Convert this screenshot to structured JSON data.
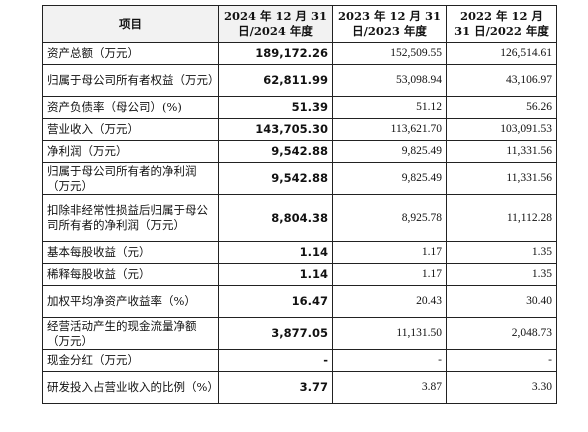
{
  "table": {
    "headers": [
      "项目",
      "2024 年 12 月 31 日/2024 年度",
      "2023 年 12 月 31 日/2023 年度",
      "2022 年 12 月 31 日/2022 年度"
    ],
    "rows": [
      {
        "label": "资产总额（万元）",
        "v2024": "189,172.26",
        "v2023": "152,509.55",
        "v2022": "126,514.61"
      },
      {
        "label": "归属于母公司所有者权益（万元）",
        "v2024": "62,811.99",
        "v2023": "53,098.94",
        "v2022": "43,106.97"
      },
      {
        "label": "资产负债率（母公司）(%)",
        "v2024": "51.39",
        "v2023": "51.12",
        "v2022": "56.26"
      },
      {
        "label": "营业收入（万元）",
        "v2024": "143,705.30",
        "v2023": "113,621.70",
        "v2022": "103,091.53"
      },
      {
        "label": "净利润（万元）",
        "v2024": "9,542.88",
        "v2023": "9,825.49",
        "v2022": "11,331.56"
      },
      {
        "label": "归属于母公司所有者的净利润（万元）",
        "v2024": "9,542.88",
        "v2023": "9,825.49",
        "v2022": "11,331.56"
      },
      {
        "label": "扣除非经常性损益后归属于母公司所有者的净利润（万元）",
        "v2024": "8,804.38",
        "v2023": "8,925.78",
        "v2022": "11,112.28"
      },
      {
        "label": "基本每股收益（元）",
        "v2024": "1.14",
        "v2023": "1.17",
        "v2022": "1.35"
      },
      {
        "label": "稀释每股收益（元）",
        "v2024": "1.14",
        "v2023": "1.17",
        "v2022": "1.35"
      },
      {
        "label": "加权平均净资产收益率（%）",
        "v2024": "16.47",
        "v2023": "20.43",
        "v2022": "30.40"
      },
      {
        "label": "经营活动产生的现金流量净额（万元）",
        "v2024": "3,877.05",
        "v2023": "11,131.50",
        "v2022": "2,048.73"
      },
      {
        "label": "现金分红（万元）",
        "v2024": "-",
        "v2023": "-",
        "v2022": "-"
      },
      {
        "label": "研发投入占营业收入的比例（%）",
        "v2024": "3.77",
        "v2023": "3.87",
        "v2022": "3.30"
      }
    ]
  }
}
